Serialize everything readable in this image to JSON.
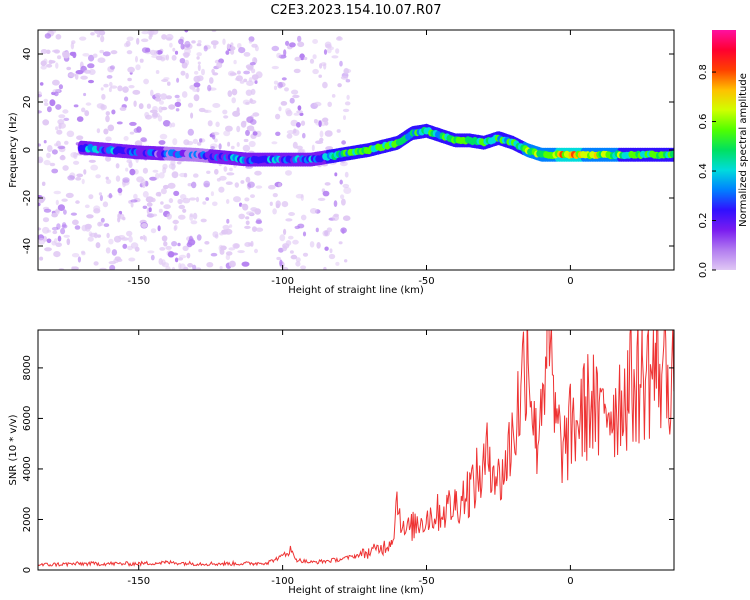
{
  "figure": {
    "title": "C2E3.2023.154.10.07.R07"
  },
  "colors": {
    "snr_line": "#ee3333",
    "axis": "#000000",
    "colormap": [
      "#e0c8f4",
      "#b27cf0",
      "#7a1cf0",
      "#3010ff",
      "#0080ff",
      "#00dcdc",
      "#00e060",
      "#50ff00",
      "#d0ff00",
      "#ffc000",
      "#ff4000",
      "#ff0030",
      "#ff10a0"
    ]
  },
  "chart_data": [
    {
      "type": "heatmap",
      "title": "C2E3.2023.154.10.07.R07",
      "xlabel": "Height of straight line (km)",
      "ylabel": "Frequency (Hz)",
      "xlim": [
        -185,
        36
      ],
      "ylim": [
        -50,
        50
      ],
      "x_ticks": [
        -150,
        -100,
        -50,
        0
      ],
      "y_ticks": [
        -40,
        -20,
        0,
        20,
        40
      ],
      "colorbar": {
        "label": "Normalized spectral amplitude",
        "range": [
          0,
          0.97
        ],
        "ticks": [
          0.0,
          0.2,
          0.4,
          0.6,
          0.8
        ]
      },
      "signal_track": {
        "x": [
          -170,
          -150,
          -130,
          -112,
          -100,
          -90,
          -80,
          -70,
          -60,
          -55,
          -50,
          -45,
          -40,
          -35,
          -30,
          -25,
          -20,
          -15,
          -10,
          0,
          10,
          20,
          36
        ],
        "frequency": [
          1,
          -1,
          -2,
          -4,
          -4,
          -4,
          -2,
          0,
          3,
          7,
          8,
          6,
          4,
          4,
          3,
          5,
          3,
          0,
          -2,
          -2,
          -2,
          -2,
          -2
        ],
        "normalized_amplitude": [
          0.35,
          0.25,
          0.2,
          0.3,
          0.3,
          0.3,
          0.45,
          0.5,
          0.5,
          0.45,
          0.45,
          0.45,
          0.5,
          0.5,
          0.45,
          0.45,
          0.45,
          0.55,
          0.6,
          0.75,
          0.6,
          0.5,
          0.5
        ]
      },
      "noise_regions_x": [
        [
          -185,
          -108
        ],
        [
          -104,
          -92
        ],
        [
          -90,
          -77
        ]
      ]
    },
    {
      "type": "line",
      "xlabel": "Height of straight line (km)",
      "ylabel": "SNR (10 * v/v)",
      "xlim": [
        -185,
        36
      ],
      "ylim": [
        0,
        9500
      ],
      "x_ticks": [
        -150,
        -100,
        -50,
        0
      ],
      "y_ticks": [
        0,
        2000,
        4000,
        6000,
        8000
      ],
      "series": [
        {
          "x": [
            -185,
            -170,
            -160,
            -150,
            -140,
            -130,
            -120,
            -110,
            -105,
            -100,
            -98,
            -95,
            -90,
            -85,
            -80,
            -75,
            -70,
            -65,
            -62,
            -60,
            -58,
            -55,
            -50,
            -45,
            -40,
            -35,
            -30,
            -28,
            -25,
            -22,
            -20,
            -17,
            -15,
            -12,
            -10,
            -8,
            -5,
            -2,
            0,
            2,
            5,
            8,
            10,
            12,
            15,
            20,
            25,
            30,
            36
          ],
          "y": [
            200,
            250,
            250,
            250,
            300,
            250,
            250,
            260,
            300,
            550,
            850,
            400,
            300,
            350,
            420,
            550,
            700,
            900,
            1200,
            2900,
            1500,
            1700,
            2100,
            2300,
            2600,
            3200,
            4000,
            4800,
            3500,
            4300,
            5500,
            7000,
            9500,
            5000,
            7000,
            9500,
            5500,
            4800,
            5500,
            5800,
            6300,
            6800,
            5500,
            6800,
            6400,
            7200,
            7600,
            8000,
            7900
          ]
        }
      ]
    }
  ]
}
